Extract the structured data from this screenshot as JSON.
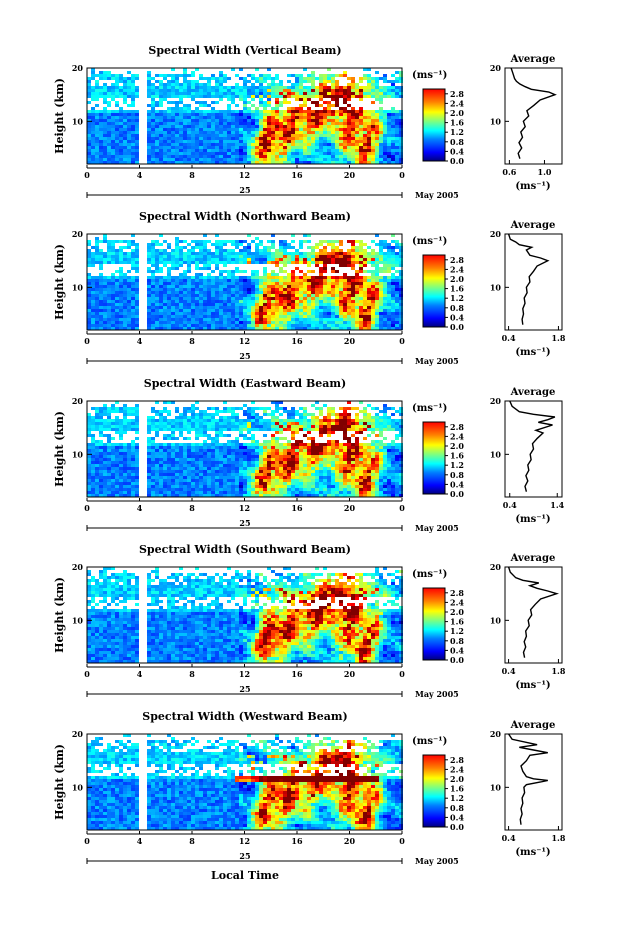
{
  "figure": {
    "xlabel": "Local Time",
    "date_label": "May 2005",
    "day_label": "25",
    "unit_label": "(ms⁻¹)",
    "avg_title": "Average",
    "avg_xlabel": "(ms⁻¹)"
  },
  "chart_data": [
    {
      "type": "heatmap",
      "title": "Spectral Width (Vertical Beam)",
      "ylabel": "Height (km)",
      "x_ticks": [
        "0",
        "4",
        "8",
        "12",
        "16",
        "20",
        "0"
      ],
      "y_ticks": [
        "20",
        "10"
      ],
      "xlim": [
        0,
        24
      ],
      "ylim": [
        2,
        20
      ],
      "colorbar_ticks": [
        "2.8",
        "2.4",
        "2.0",
        "1.6",
        "1.2",
        "0.8",
        "0.4",
        "0.0"
      ],
      "colorbar_range": [
        0,
        3.0
      ],
      "avg_profile": {
        "type": "line",
        "x_ticks": [
          "0.6",
          "1.0"
        ],
        "xlim": [
          0.55,
          1.2
        ],
        "y_ticks": [
          "20",
          "10"
        ],
        "ylim": [
          2,
          20
        ],
        "points": [
          [
            0.72,
            3
          ],
          [
            0.7,
            4
          ],
          [
            0.74,
            5
          ],
          [
            0.71,
            6
          ],
          [
            0.75,
            7
          ],
          [
            0.73,
            8
          ],
          [
            0.78,
            9
          ],
          [
            0.76,
            10
          ],
          [
            0.82,
            11
          ],
          [
            0.8,
            12
          ],
          [
            0.88,
            13
          ],
          [
            0.95,
            14
          ],
          [
            1.12,
            15
          ],
          [
            1.05,
            15.5
          ],
          [
            0.85,
            16
          ],
          [
            0.78,
            16.5
          ],
          [
            0.72,
            17
          ],
          [
            0.68,
            17.5
          ],
          [
            0.66,
            18
          ],
          [
            0.64,
            19
          ],
          [
            0.62,
            20
          ]
        ]
      }
    },
    {
      "type": "heatmap",
      "title": "Spectral Width (Northward Beam)",
      "ylabel": "Height (km)",
      "x_ticks": [
        "0",
        "4",
        "8",
        "12",
        "16",
        "20",
        "0"
      ],
      "y_ticks": [
        "20",
        "10"
      ],
      "xlim": [
        0,
        24
      ],
      "ylim": [
        2,
        20
      ],
      "colorbar_ticks": [
        "2.8",
        "2.4",
        "2.0",
        "1.6",
        "1.2",
        "0.8",
        "0.4",
        "0.0"
      ],
      "colorbar_range": [
        0,
        3.0
      ],
      "avg_profile": {
        "type": "line",
        "x_ticks": [
          "0.4",
          "1.8"
        ],
        "xlim": [
          0.3,
          1.9
        ],
        "y_ticks": [
          "20",
          "10"
        ],
        "ylim": [
          2,
          20
        ],
        "points": [
          [
            0.8,
            3
          ],
          [
            0.78,
            4
          ],
          [
            0.82,
            5
          ],
          [
            0.8,
            6
          ],
          [
            0.86,
            7
          ],
          [
            0.84,
            8
          ],
          [
            0.92,
            9
          ],
          [
            0.9,
            10
          ],
          [
            1.0,
            11
          ],
          [
            0.98,
            12
          ],
          [
            1.1,
            13
          ],
          [
            1.2,
            14
          ],
          [
            1.5,
            15
          ],
          [
            1.3,
            15.5
          ],
          [
            1.0,
            16
          ],
          [
            0.9,
            17
          ],
          [
            1.05,
            17.5
          ],
          [
            0.7,
            18
          ],
          [
            0.6,
            18.5
          ],
          [
            0.45,
            19
          ],
          [
            0.4,
            20
          ]
        ]
      }
    },
    {
      "type": "heatmap",
      "title": "Spectral Width (Eastward Beam)",
      "ylabel": "Height (km)",
      "x_ticks": [
        "0",
        "4",
        "8",
        "12",
        "16",
        "20",
        "0"
      ],
      "y_ticks": [
        "20",
        "10"
      ],
      "xlim": [
        0,
        24
      ],
      "ylim": [
        2,
        20
      ],
      "colorbar_ticks": [
        "2.8",
        "2.4",
        "2.0",
        "1.6",
        "1.2",
        "0.8",
        "0.4",
        "0.0"
      ],
      "colorbar_range": [
        0,
        3.0
      ],
      "avg_profile": {
        "type": "line",
        "x_ticks": [
          "0.4",
          "1.4"
        ],
        "xlim": [
          0.3,
          1.5
        ],
        "y_ticks": [
          "20",
          "10"
        ],
        "ylim": [
          2,
          20
        ],
        "points": [
          [
            0.75,
            3
          ],
          [
            0.72,
            4
          ],
          [
            0.78,
            5
          ],
          [
            0.74,
            6
          ],
          [
            0.8,
            7
          ],
          [
            0.78,
            8
          ],
          [
            0.85,
            9
          ],
          [
            0.83,
            10
          ],
          [
            0.9,
            11
          ],
          [
            0.88,
            12
          ],
          [
            0.98,
            13
          ],
          [
            1.1,
            14
          ],
          [
            0.95,
            14.5
          ],
          [
            1.3,
            15.5
          ],
          [
            1.0,
            16
          ],
          [
            1.2,
            16.5
          ],
          [
            1.35,
            17
          ],
          [
            0.9,
            17.5
          ],
          [
            0.6,
            18
          ],
          [
            0.45,
            19
          ],
          [
            0.4,
            20
          ]
        ]
      }
    },
    {
      "type": "heatmap",
      "title": "Spectral Width (Southward Beam)",
      "ylabel": "Height (km)",
      "x_ticks": [
        "0",
        "4",
        "8",
        "12",
        "16",
        "20",
        "0"
      ],
      "y_ticks": [
        "20",
        "10"
      ],
      "xlim": [
        0,
        24
      ],
      "ylim": [
        2,
        20
      ],
      "colorbar_ticks": [
        "2.8",
        "2.4",
        "2.0",
        "1.6",
        "1.2",
        "0.8",
        "0.4",
        "0.0"
      ],
      "colorbar_range": [
        0,
        3.0
      ],
      "avg_profile": {
        "type": "line",
        "x_ticks": [
          "0.4",
          "1.8"
        ],
        "xlim": [
          0.3,
          1.9
        ],
        "y_ticks": [
          "20",
          "10"
        ],
        "ylim": [
          2,
          20
        ],
        "points": [
          [
            0.85,
            3
          ],
          [
            0.82,
            4
          ],
          [
            0.88,
            5
          ],
          [
            0.84,
            6
          ],
          [
            0.9,
            7
          ],
          [
            0.88,
            8
          ],
          [
            0.98,
            9
          ],
          [
            0.95,
            10
          ],
          [
            1.05,
            11
          ],
          [
            1.02,
            12
          ],
          [
            1.15,
            13
          ],
          [
            1.3,
            14
          ],
          [
            1.75,
            15
          ],
          [
            1.5,
            15.5
          ],
          [
            1.2,
            16
          ],
          [
            1.0,
            16.5
          ],
          [
            1.25,
            17
          ],
          [
            0.8,
            17.5
          ],
          [
            0.6,
            18
          ],
          [
            0.45,
            19
          ],
          [
            0.4,
            20
          ]
        ]
      }
    },
    {
      "type": "heatmap",
      "title": "Spectral Width (Westward Beam)",
      "ylabel": "Height (km)",
      "x_ticks": [
        "0",
        "4",
        "8",
        "12",
        "16",
        "20",
        "0"
      ],
      "y_ticks": [
        "20",
        "10"
      ],
      "xlim": [
        0,
        24
      ],
      "ylim": [
        2,
        20
      ],
      "colorbar_ticks": [
        "2.8",
        "2.4",
        "2.0",
        "1.6",
        "1.2",
        "0.8",
        "0.4",
        "0.0"
      ],
      "colorbar_range": [
        0,
        3.0
      ],
      "avg_profile": {
        "type": "line",
        "x_ticks": [
          "0.4",
          "1.8"
        ],
        "xlim": [
          0.3,
          1.9
        ],
        "y_ticks": [
          "20",
          "10"
        ],
        "ylim": [
          2,
          20
        ],
        "points": [
          [
            0.75,
            3
          ],
          [
            0.73,
            4
          ],
          [
            0.78,
            5
          ],
          [
            0.75,
            6
          ],
          [
            0.8,
            7
          ],
          [
            0.78,
            8
          ],
          [
            0.85,
            9
          ],
          [
            0.83,
            10
          ],
          [
            0.9,
            10.5
          ],
          [
            1.3,
            11
          ],
          [
            1.5,
            11.3
          ],
          [
            1.1,
            11.6
          ],
          [
            0.9,
            12
          ],
          [
            0.8,
            13
          ],
          [
            0.75,
            14
          ],
          [
            0.9,
            15
          ],
          [
            1.0,
            16
          ],
          [
            1.5,
            16.5
          ],
          [
            1.1,
            17
          ],
          [
            0.7,
            17.5
          ],
          [
            1.2,
            18
          ],
          [
            0.5,
            19
          ],
          [
            0.4,
            20
          ]
        ]
      }
    }
  ]
}
